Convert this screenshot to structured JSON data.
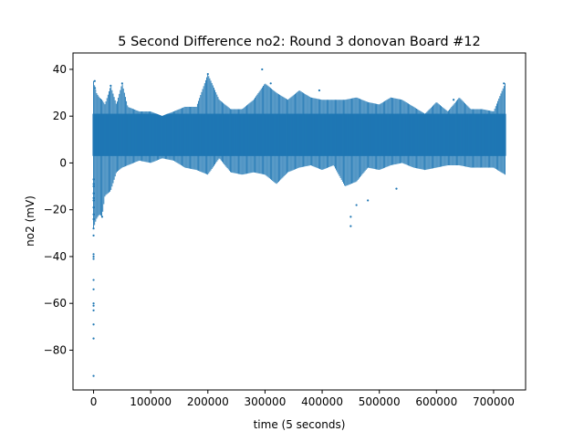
{
  "figure": {
    "background": "#ffffff"
  },
  "chart_data": {
    "type": "scatter",
    "title": "5 Second Difference no2: Round 3 donovan Board #12",
    "xlabel": "time (5 seconds)",
    "ylabel": "no2 (mV)",
    "xlim": [
      -36000,
      756000
    ],
    "ylim": [
      -97,
      47
    ],
    "xticks": [
      0,
      100000,
      200000,
      300000,
      400000,
      500000,
      600000,
      700000
    ],
    "xtick_labels": [
      "0",
      "100000",
      "200000",
      "300000",
      "400000",
      "500000",
      "600000",
      "700000"
    ],
    "yticks": [
      40,
      20,
      0,
      -20,
      -40,
      -60,
      -80
    ],
    "ytick_labels": [
      "40",
      "20",
      "0",
      "−20",
      "−40",
      "−60",
      "−80"
    ],
    "grid": false,
    "legend": "none",
    "marker_color": "#1f77b4",
    "x_range_of_data": [
      0,
      720000
    ],
    "band": [
      {
        "x": 0,
        "low": -28,
        "high": 35
      },
      {
        "x": 5000,
        "low": -24,
        "high": 30
      },
      {
        "x": 10000,
        "low": -22,
        "high": 28
      },
      {
        "x": 15000,
        "low": -23,
        "high": 27
      },
      {
        "x": 20000,
        "low": -14,
        "high": 25
      },
      {
        "x": 30000,
        "low": -12,
        "high": 33
      },
      {
        "x": 40000,
        "low": -4,
        "high": 25
      },
      {
        "x": 50000,
        "low": -2,
        "high": 34
      },
      {
        "x": 60000,
        "low": -1,
        "high": 24
      },
      {
        "x": 80000,
        "low": 1,
        "high": 22
      },
      {
        "x": 100000,
        "low": 0,
        "high": 22
      },
      {
        "x": 120000,
        "low": 2,
        "high": 20
      },
      {
        "x": 140000,
        "low": 1,
        "high": 22
      },
      {
        "x": 160000,
        "low": -2,
        "high": 24
      },
      {
        "x": 180000,
        "low": -3,
        "high": 24
      },
      {
        "x": 200000,
        "low": -5,
        "high": 38
      },
      {
        "x": 220000,
        "low": 2,
        "high": 27
      },
      {
        "x": 240000,
        "low": -4,
        "high": 23
      },
      {
        "x": 260000,
        "low": -5,
        "high": 23
      },
      {
        "x": 280000,
        "low": -4,
        "high": 27
      },
      {
        "x": 300000,
        "low": -5,
        "high": 34
      },
      {
        "x": 320000,
        "low": -9,
        "high": 30
      },
      {
        "x": 340000,
        "low": -4,
        "high": 27
      },
      {
        "x": 360000,
        "low": -2,
        "high": 31
      },
      {
        "x": 380000,
        "low": -1,
        "high": 28
      },
      {
        "x": 400000,
        "low": -3,
        "high": 27
      },
      {
        "x": 420000,
        "low": -1,
        "high": 27
      },
      {
        "x": 440000,
        "low": -10,
        "high": 27
      },
      {
        "x": 460000,
        "low": -8,
        "high": 28
      },
      {
        "x": 480000,
        "low": -2,
        "high": 26
      },
      {
        "x": 500000,
        "low": -3,
        "high": 25
      },
      {
        "x": 520000,
        "low": -1,
        "high": 28
      },
      {
        "x": 540000,
        "low": 0,
        "high": 27
      },
      {
        "x": 560000,
        "low": -2,
        "high": 24
      },
      {
        "x": 580000,
        "low": -3,
        "high": 21
      },
      {
        "x": 600000,
        "low": -2,
        "high": 26
      },
      {
        "x": 620000,
        "low": -1,
        "high": 22
      },
      {
        "x": 640000,
        "low": -1,
        "high": 28
      },
      {
        "x": 660000,
        "low": -2,
        "high": 23
      },
      {
        "x": 680000,
        "low": -2,
        "high": 23
      },
      {
        "x": 700000,
        "low": -2,
        "high": 22
      },
      {
        "x": 720000,
        "low": -5,
        "high": 34
      }
    ],
    "points": [
      {
        "x": 0,
        "y": -91
      },
      {
        "x": 0,
        "y": -75
      },
      {
        "x": 0,
        "y": -69
      },
      {
        "x": 0,
        "y": -63
      },
      {
        "x": 0,
        "y": -61
      },
      {
        "x": 0,
        "y": -60
      },
      {
        "x": 0,
        "y": -54
      },
      {
        "x": 0,
        "y": -50
      },
      {
        "x": 0,
        "y": -41
      },
      {
        "x": 0,
        "y": -40
      },
      {
        "x": 0,
        "y": -39
      },
      {
        "x": 0,
        "y": -31
      },
      {
        "x": 0,
        "y": -28
      },
      {
        "x": 0,
        "y": -24
      },
      {
        "x": 0,
        "y": -22
      },
      {
        "x": 0,
        "y": -19
      },
      {
        "x": 0,
        "y": -16
      },
      {
        "x": 0,
        "y": -15
      },
      {
        "x": 0,
        "y": -13
      },
      {
        "x": 0,
        "y": -10
      },
      {
        "x": 0,
        "y": -9
      },
      {
        "x": 0,
        "y": -7
      },
      {
        "x": 2000,
        "y": 35
      },
      {
        "x": 2500,
        "y": 32
      },
      {
        "x": 15000,
        "y": -23
      },
      {
        "x": 30000,
        "y": 33
      },
      {
        "x": 50000,
        "y": 34
      },
      {
        "x": 200000,
        "y": 38
      },
      {
        "x": 295000,
        "y": 40
      },
      {
        "x": 310000,
        "y": 34
      },
      {
        "x": 395000,
        "y": 31
      },
      {
        "x": 450000,
        "y": -27
      },
      {
        "x": 450000,
        "y": -23
      },
      {
        "x": 460000,
        "y": -18
      },
      {
        "x": 480000,
        "y": -16
      },
      {
        "x": 530000,
        "y": -11
      },
      {
        "x": 630000,
        "y": 27
      },
      {
        "x": 718000,
        "y": 34
      }
    ]
  }
}
